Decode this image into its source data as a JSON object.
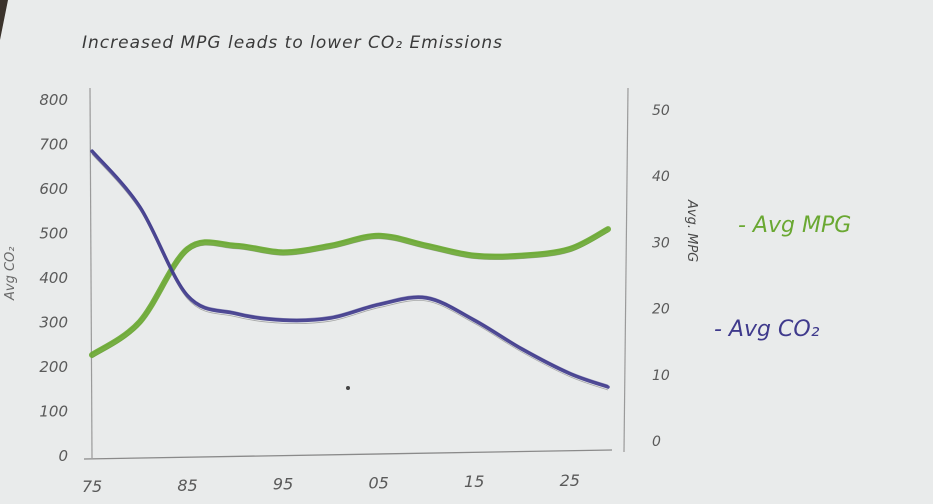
{
  "chart_data": {
    "type": "line",
    "title": "Increased MPG leads to lower CO₂ Emissions",
    "x": [
      "75",
      "85",
      "95",
      "05",
      "15",
      "25"
    ],
    "x_values": [
      1975,
      1980,
      1985,
      1990,
      1995,
      2000,
      2005,
      2010,
      2015,
      2020,
      2025,
      2029
    ],
    "left_axis": {
      "label": "Avg CO₂",
      "ticks": [
        "0",
        "100",
        "200",
        "300",
        "400",
        "500",
        "600",
        "700",
        "800"
      ],
      "lim": [
        0,
        800
      ]
    },
    "right_axis": {
      "label": "Avg. MPG",
      "ticks": [
        "0",
        "10",
        "20",
        "30",
        "40",
        "50"
      ],
      "lim": [
        0,
        50
      ]
    },
    "series": [
      {
        "name": "- Avg MPG",
        "axis": "right",
        "color": "#6aa832",
        "values": [
          13,
          18,
          29,
          29.5,
          28.5,
          29.5,
          31,
          29.5,
          28,
          28,
          29,
          32
        ]
      },
      {
        "name": "- Avg CO₂",
        "axis": "left",
        "color": "#3f3a8c",
        "values": [
          685,
          560,
          360,
          320,
          305,
          310,
          340,
          355,
          305,
          240,
          185,
          155
        ]
      }
    ],
    "grid": false,
    "legend": "right"
  }
}
